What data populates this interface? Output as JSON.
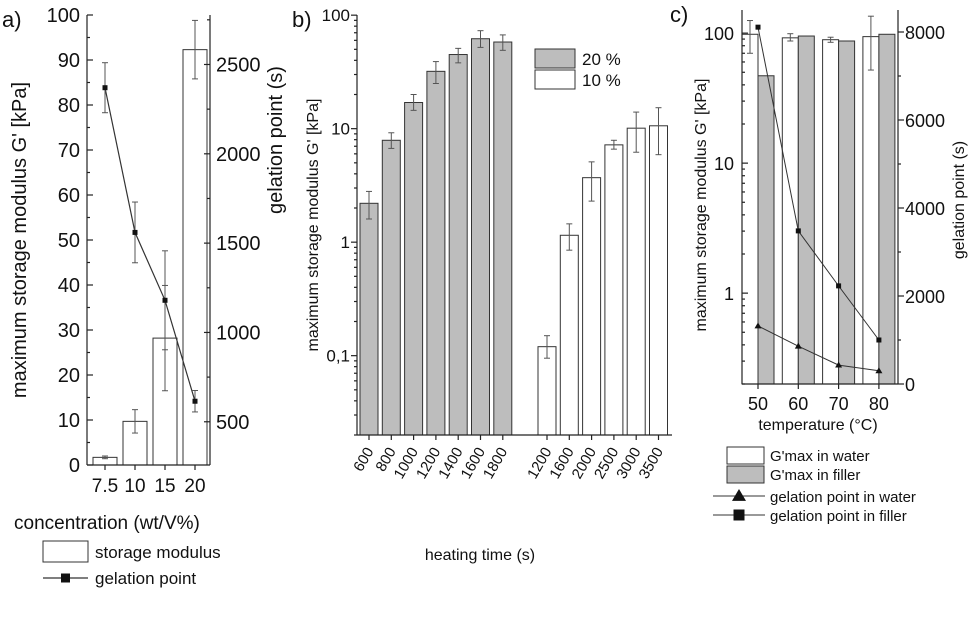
{
  "colors": {
    "axis": "#222222",
    "bar_white": "#ffffff",
    "bar_gray": "#bdbdbd",
    "bar_edge": "#333333",
    "error": "#555555",
    "line": "#333333"
  },
  "chart_data": [
    {
      "panel_label": "a)",
      "type": "bar",
      "categories": [
        "7.5",
        "10",
        "15",
        "20"
      ],
      "xlabel": "concentration (wt/V%)",
      "ylabel": "maximum storage modulus G' [kPa]",
      "ylabel_right": "gelation point (s)",
      "ylim": [
        0,
        100
      ],
      "yticks": [
        0,
        10,
        20,
        30,
        40,
        50,
        60,
        70,
        80,
        90,
        100
      ],
      "ylim_right": [
        258,
        2777
      ],
      "yticks_right": [
        500,
        1000,
        1500,
        2000,
        2500
      ],
      "legend": [
        {
          "label": "storage modulus",
          "marker": "white-box"
        },
        {
          "label": "gelation point",
          "marker": "line-square"
        }
      ],
      "series": [
        {
          "name": "storage modulus",
          "type": "bar",
          "axis": "left",
          "values": [
            1.7,
            9.7,
            28.2,
            92.3
          ],
          "errors": [
            0.3,
            2.6,
            11.7,
            6.5
          ]
        },
        {
          "name": "gelation point",
          "type": "line",
          "axis": "right",
          "values": [
            2370,
            1560,
            1180,
            615
          ],
          "errors": [
            140,
            170,
            277,
            60
          ]
        }
      ]
    },
    {
      "panel_label": "b)",
      "type": "bar",
      "xlabel": "heating time (s)",
      "ylabel": "maximum storage modulus G' [kPa]",
      "yscale": "log",
      "ylim": [
        0.02,
        100
      ],
      "yticks": [
        0.1,
        1,
        10,
        100
      ],
      "ytick_labels": [
        "0,1",
        "1",
        "10",
        "100"
      ],
      "legend_position": "top-right",
      "series": [
        {
          "name": "20 %",
          "color": "#bdbdbd",
          "categories": [
            "600",
            "800",
            "1000",
            "1200",
            "1400",
            "1600",
            "1800"
          ],
          "values": [
            2.2,
            7.9,
            17,
            32,
            45,
            62,
            58
          ],
          "err_low": [
            1.6,
            6.7,
            14.5,
            25,
            38,
            52,
            49
          ],
          "err_high": [
            2.8,
            9.2,
            20,
            39,
            51,
            73,
            67
          ]
        },
        {
          "name": "10 %",
          "color": "#ffffff",
          "categories": [
            "1200",
            "1600",
            "2000",
            "2500",
            "3000",
            "3500"
          ],
          "values": [
            0.12,
            1.15,
            3.7,
            7.2,
            10.1,
            10.6
          ],
          "err_low": [
            0.095,
            0.85,
            2.3,
            6.6,
            6.2,
            5.9
          ],
          "err_high": [
            0.15,
            1.45,
            5.1,
            7.9,
            14,
            15.3
          ]
        }
      ]
    },
    {
      "panel_label": "c)",
      "type": "bar",
      "categories": [
        "50",
        "60",
        "70",
        "80"
      ],
      "xlabel": "temperature (°C)",
      "ylabel": "maximum storage modulus G' [kPa]",
      "ylabel_right": "gelation point (s)",
      "yscale": "log",
      "ylim": [
        0.2,
        150
      ],
      "yticks": [
        1,
        10,
        100
      ],
      "ylim_right": [
        0,
        8500
      ],
      "yticks_right": [
        0,
        2000,
        4000,
        6000,
        8000
      ],
      "series": [
        {
          "name": "G'max in water",
          "type": "bar",
          "color": "#ffffff",
          "values": [
            98,
            92,
            89,
            94
          ],
          "err_low": [
            70,
            87,
            85,
            52
          ],
          "err_high": [
            125,
            99,
            93,
            135
          ]
        },
        {
          "name": "G'max in filler",
          "type": "bar",
          "color": "#bdbdbd",
          "values": [
            47,
            95,
            87,
            98
          ]
        },
        {
          "name": "gelation point in water",
          "type": "line",
          "marker": "triangle",
          "axis": "right",
          "values": [
            1320,
            860,
            430,
            300
          ]
        },
        {
          "name": "gelation point in filler",
          "type": "line",
          "marker": "square",
          "axis": "right",
          "values": [
            8110,
            3480,
            2230,
            1000
          ]
        }
      ]
    }
  ]
}
